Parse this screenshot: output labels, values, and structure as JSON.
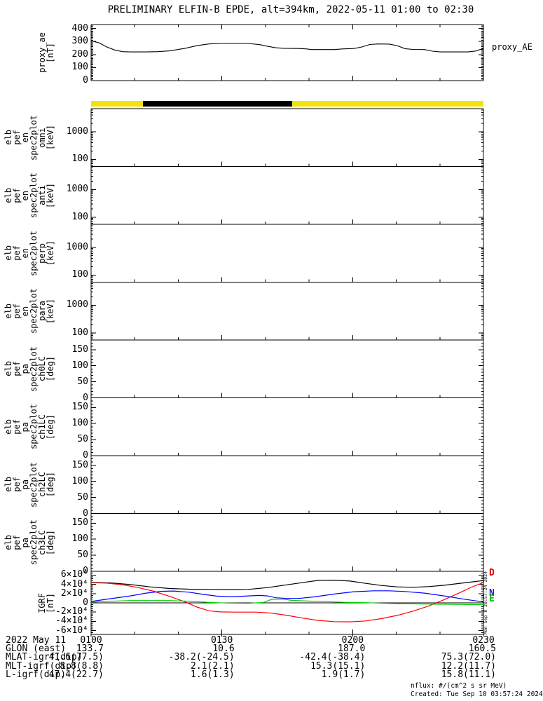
{
  "title": "PRELIMINARY ELFIN-B EPDE, alt=394km, 2022-05-11 01:00 to 02:30",
  "proxy_panel": {
    "left_label_lines": [
      "proxy_ae",
      "[nT]"
    ],
    "right_label": "proxy_AE",
    "ytick_labels": [
      "400",
      "300",
      "200",
      "100",
      "0"
    ]
  },
  "status_bar": {
    "segments": [
      {
        "color": "#f2e30b",
        "start": 0.0,
        "end": 0.132
      },
      {
        "color": "#000000",
        "start": 0.132,
        "end": 0.513
      },
      {
        "color": "#f2e30b",
        "start": 0.513,
        "end": 1.0
      }
    ]
  },
  "energy_panels": [
    {
      "label_lines": [
        "elb",
        "pef",
        "en",
        "spec2plot",
        "omni",
        "[keV]"
      ],
      "ytick_labels": [
        "1000",
        "100"
      ]
    },
    {
      "label_lines": [
        "elb",
        "pef",
        "en",
        "spec2plot",
        "anti",
        "[keV]"
      ],
      "ytick_labels": [
        "1000",
        "100"
      ]
    },
    {
      "label_lines": [
        "elb",
        "pef",
        "en",
        "spec2plot",
        "perp",
        "[keV]"
      ],
      "ytick_labels": [
        "1000",
        "100"
      ]
    },
    {
      "label_lines": [
        "elb",
        "pef",
        "en",
        "spec2plot",
        "para",
        "[keV]"
      ],
      "ytick_labels": [
        "1000",
        "100"
      ]
    }
  ],
  "pa_panels": [
    {
      "label_lines": [
        "elb",
        "pef",
        "pa",
        "spec2plot",
        "ch0LC",
        "[deg]"
      ],
      "ytick_labels": [
        "150",
        "100",
        "50",
        "0"
      ]
    },
    {
      "label_lines": [
        "elb",
        "pef",
        "pa",
        "spec2plot",
        "ch1LC",
        "[deg]"
      ],
      "ytick_labels": [
        "150",
        "100",
        "50",
        "0"
      ]
    },
    {
      "label_lines": [
        "elb",
        "pef",
        "pa",
        "spec2plot",
        "ch2LC",
        "[deg]"
      ],
      "ytick_labels": [
        "150",
        "100",
        "50",
        "0"
      ]
    },
    {
      "label_lines": [
        "elb",
        "pef",
        "pa",
        "spec2plot",
        "ch3LC",
        "[deg]"
      ],
      "ytick_labels": [
        "150",
        "100",
        "50",
        "0"
      ]
    }
  ],
  "igrf_panel": {
    "left_label_lines": [
      "IGRF",
      "[nT]"
    ],
    "ytick_labels": [
      "6×10⁴",
      "4×10⁴",
      "2×10⁴",
      "0",
      "-2×10⁴",
      "-4×10⁴",
      "-6×10⁴"
    ],
    "series_labels": [
      {
        "text": "D",
        "color": "#e00000"
      },
      {
        "text": "N",
        "color": "#2020e0"
      },
      {
        "text": "E",
        "color": "#00bb00"
      }
    ],
    "watermark": "Mon Sep 8 20:57:24 2024"
  },
  "xaxis": {
    "tick_labels": [
      "0100",
      "0130",
      "0200",
      "0230"
    ]
  },
  "footer": {
    "date_label": "2022 May 11",
    "row_labels": [
      "GLON (east)",
      "MLAT-igrf(dip)",
      "MLT-igrf(dip)",
      "L-igrf(dip)"
    ],
    "rows": [
      [
        "133.7",
        "10.6",
        "187.0",
        "160.5"
      ],
      [
        "41.6(77.5)",
        "-38.2(-24.5)",
        "-42.4(-38.4)",
        "75.3(72.0)"
      ],
      [
        "8.8(8.8)",
        "2.1(2.1)",
        "15.3(15.1)",
        "12.2(11.7)"
      ],
      [
        "47.4(22.7)",
        "1.6(1.3)",
        "1.9(1.7)",
        "15.8(11.1)"
      ]
    ]
  },
  "notes": {
    "flux_units": "nflux: #/(cm^2 s sr MeV)",
    "created": "Created: Tue Sep 10 03:57:24 2024"
  },
  "chart_data": [
    {
      "type": "line",
      "title": "proxy_AE",
      "ylabel": "proxy_ae [nT]",
      "ylim": [
        0,
        430
      ],
      "x_range": [
        "01:00",
        "02:30"
      ],
      "x_units": "fraction of time window 01:00-02:30",
      "series": [
        {
          "name": "proxy_AE",
          "color": "#000000",
          "points": [
            [
              0,
              305
            ],
            [
              0.02,
              290
            ],
            [
              0.04,
              258
            ],
            [
              0.06,
              235
            ],
            [
              0.08,
              222
            ],
            [
              0.1,
              220
            ],
            [
              0.14,
              220
            ],
            [
              0.17,
              222
            ],
            [
              0.2,
              228
            ],
            [
              0.24,
              248
            ],
            [
              0.27,
              268
            ],
            [
              0.3,
              281
            ],
            [
              0.33,
              285
            ],
            [
              0.4,
              285
            ],
            [
              0.43,
              276
            ],
            [
              0.45,
              263
            ],
            [
              0.47,
              252
            ],
            [
              0.49,
              248
            ],
            [
              0.53,
              246
            ],
            [
              0.55,
              243
            ],
            [
              0.56,
              238
            ],
            [
              0.62,
              238
            ],
            [
              0.64,
              243
            ],
            [
              0.67,
              246
            ],
            [
              0.69,
              258
            ],
            [
              0.71,
              277
            ],
            [
              0.73,
              281
            ],
            [
              0.76,
              280
            ],
            [
              0.78,
              268
            ],
            [
              0.8,
              245
            ],
            [
              0.82,
              239
            ],
            [
              0.85,
              238
            ],
            [
              0.87,
              226
            ],
            [
              0.89,
              220
            ],
            [
              0.96,
              220
            ],
            [
              0.98,
              227
            ],
            [
              1,
              247
            ]
          ]
        }
      ]
    },
    {
      "type": "heatmap",
      "title": "elb_pef_en_spec2plot_omni",
      "ylabel": "[keV]",
      "yscale": "log",
      "ylim": [
        55,
        6800
      ],
      "x_range": [
        "01:00",
        "02:30"
      ],
      "values": []
    },
    {
      "type": "heatmap",
      "title": "elb_pef_en_spec2plot_anti",
      "ylabel": "[keV]",
      "yscale": "log",
      "ylim": [
        55,
        6800
      ],
      "x_range": [
        "01:00",
        "02:30"
      ],
      "values": []
    },
    {
      "type": "heatmap",
      "title": "elb_pef_en_spec2plot_perp",
      "ylabel": "[keV]",
      "yscale": "log",
      "ylim": [
        55,
        6800
      ],
      "x_range": [
        "01:00",
        "02:30"
      ],
      "values": []
    },
    {
      "type": "heatmap",
      "title": "elb_pef_en_spec2plot_para",
      "ylabel": "[keV]",
      "yscale": "log",
      "ylim": [
        55,
        6800
      ],
      "x_range": [
        "01:00",
        "02:30"
      ],
      "values": []
    },
    {
      "type": "heatmap",
      "title": "elb_pef_pa_spec2plot_ch0LC",
      "ylabel": "[deg]",
      "ylim": [
        0,
        180
      ],
      "x_range": [
        "01:00",
        "02:30"
      ],
      "values": []
    },
    {
      "type": "heatmap",
      "title": "elb_pef_pa_spec2plot_ch1LC",
      "ylabel": "[deg]",
      "ylim": [
        0,
        180
      ],
      "x_range": [
        "01:00",
        "02:30"
      ],
      "values": []
    },
    {
      "type": "heatmap",
      "title": "elb_pef_pa_spec2plot_ch2LC",
      "ylabel": "[deg]",
      "ylim": [
        0,
        180
      ],
      "x_range": [
        "01:00",
        "02:30"
      ],
      "values": []
    },
    {
      "type": "heatmap",
      "title": "elb_pef_pa_spec2plot_ch3LC",
      "ylabel": "[deg]",
      "ylim": [
        0,
        180
      ],
      "x_range": [
        "01:00",
        "02:30"
      ],
      "values": []
    },
    {
      "type": "line",
      "title": "IGRF",
      "ylabel": "IGRF [nT]",
      "ylim": [
        -68000,
        68000
      ],
      "x_range": [
        "01:00",
        "02:30"
      ],
      "series": [
        {
          "name": "",
          "color": "#000000",
          "points": [
            [
              0,
              44000
            ],
            [
              0.05,
              43000
            ],
            [
              0.1,
              39500
            ],
            [
              0.15,
              34500
            ],
            [
              0.2,
              31000
            ],
            [
              0.25,
              29500
            ],
            [
              0.3,
              29000
            ],
            [
              0.36,
              28500
            ],
            [
              0.4,
              29000
            ],
            [
              0.45,
              33000
            ],
            [
              0.5,
              39000
            ],
            [
              0.55,
              45000
            ],
            [
              0.58,
              48500
            ],
            [
              0.62,
              49000
            ],
            [
              0.66,
              47000
            ],
            [
              0.7,
              42000
            ],
            [
              0.74,
              37500
            ],
            [
              0.78,
              34500
            ],
            [
              0.82,
              33500
            ],
            [
              0.86,
              35000
            ],
            [
              0.9,
              38000
            ],
            [
              0.95,
              43000
            ],
            [
              1,
              48000
            ]
          ]
        },
        {
          "name": "D",
          "color": "#ff0000",
          "points": [
            [
              0,
              43500
            ],
            [
              0.04,
              42500
            ],
            [
              0.08,
              39000
            ],
            [
              0.12,
              33000
            ],
            [
              0.16,
              25000
            ],
            [
              0.2,
              14000
            ],
            [
              0.24,
              2000
            ],
            [
              0.27,
              -9000
            ],
            [
              0.3,
              -17000
            ],
            [
              0.33,
              -19500
            ],
            [
              0.36,
              -20000
            ],
            [
              0.42,
              -20000
            ],
            [
              0.46,
              -22000
            ],
            [
              0.5,
              -27000
            ],
            [
              0.54,
              -33000
            ],
            [
              0.58,
              -38000
            ],
            [
              0.62,
              -40500
            ],
            [
              0.66,
              -41000
            ],
            [
              0.7,
              -39000
            ],
            [
              0.74,
              -34000
            ],
            [
              0.78,
              -27000
            ],
            [
              0.82,
              -18000
            ],
            [
              0.86,
              -7000
            ],
            [
              0.9,
              7000
            ],
            [
              0.94,
              22000
            ],
            [
              0.97,
              34000
            ],
            [
              1,
              44000
            ]
          ]
        },
        {
          "name": "N",
          "color": "#0000ff",
          "points": [
            [
              0,
              3000
            ],
            [
              0.05,
              9000
            ],
            [
              0.1,
              15000
            ],
            [
              0.14,
              21000
            ],
            [
              0.18,
              25000
            ],
            [
              0.21,
              25500
            ],
            [
              0.25,
              23000
            ],
            [
              0.28,
              19000
            ],
            [
              0.32,
              14500
            ],
            [
              0.36,
              13000
            ],
            [
              0.4,
              15000
            ],
            [
              0.43,
              16000
            ],
            [
              0.45,
              15000
            ],
            [
              0.47,
              11000
            ],
            [
              0.5,
              9500
            ],
            [
              0.53,
              9500
            ],
            [
              0.57,
              13000
            ],
            [
              0.62,
              19000
            ],
            [
              0.67,
              24000
            ],
            [
              0.72,
              26000
            ],
            [
              0.76,
              26000
            ],
            [
              0.8,
              24500
            ],
            [
              0.85,
              21000
            ],
            [
              0.9,
              15000
            ],
            [
              0.95,
              8000
            ],
            [
              1,
              2000
            ]
          ]
        },
        {
          "name": "E",
          "color": "#00cc00",
          "points": [
            [
              0,
              1500
            ],
            [
              0.05,
              3500
            ],
            [
              0.1,
              5000
            ],
            [
              0.2,
              5000
            ],
            [
              0.25,
              3500
            ],
            [
              0.3,
              1000
            ],
            [
              0.35,
              -500
            ],
            [
              0.4,
              -1000
            ],
            [
              0.44,
              1000
            ],
            [
              0.46,
              7500
            ],
            [
              0.49,
              8000
            ],
            [
              0.51,
              5500
            ],
            [
              0.55,
              4000
            ],
            [
              0.6,
              2500
            ],
            [
              0.65,
              1000
            ],
            [
              0.7,
              500
            ],
            [
              0.75,
              -1000
            ],
            [
              0.8,
              -2000
            ],
            [
              0.85,
              -2500
            ],
            [
              0.9,
              -3000
            ],
            [
              0.95,
              -3500
            ],
            [
              1,
              -4000
            ]
          ]
        }
      ]
    }
  ]
}
